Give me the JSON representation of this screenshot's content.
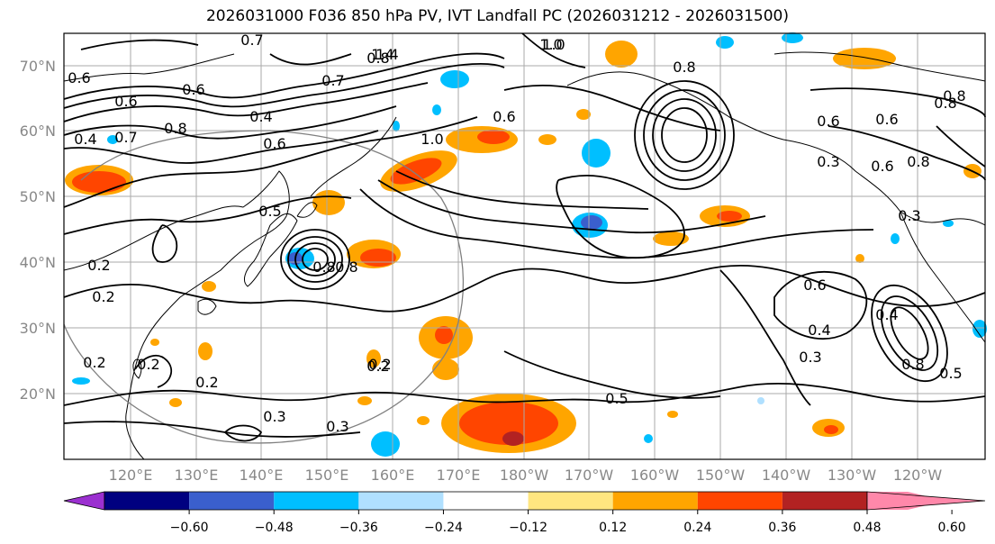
{
  "title": "2026031000 F036 850 hPa PV, IVT Landfall PC (2026031212 - 2026031500)",
  "lat_labels": [
    "70°N",
    "60°N",
    "50°N",
    "40°N",
    "30°N",
    "20°N"
  ],
  "lon_labels": [
    "120°E",
    "130°E",
    "140°E",
    "150°E",
    "160°E",
    "170°E",
    "180°W",
    "170°W",
    "160°W",
    "150°W",
    "140°W",
    "130°W",
    "120°W"
  ],
  "colorbar": {
    "ticks": [
      "−0.60",
      "−0.48",
      "−0.36",
      "−0.24",
      "−0.12",
      "0.12",
      "0.24",
      "0.36",
      "0.48",
      "0.60"
    ],
    "colors": [
      "#9b30d0",
      "#000080",
      "#3a5fcd",
      "#00bfff",
      "#b0e0ff",
      "#ffffff",
      "#ffe680",
      "#ffa500",
      "#ff4500",
      "#b22222",
      "#ff88aa"
    ]
  },
  "contour_labels": [
    "0.6",
    "0.7",
    "0.8",
    "1.0",
    "1.4",
    "0.4",
    "0.6",
    "0.8",
    "1.0",
    "0.6",
    "0.7",
    "0.6",
    "0.8",
    "0.4",
    "0.7",
    "0.6",
    "0.6",
    "0.8",
    "0.6",
    "0.8",
    "0.5",
    "0.2",
    "0.2",
    "0.2",
    "0.2",
    "0.2",
    "0.3",
    "0.3",
    "0.8",
    "0.8",
    "0.2",
    "0.5",
    "0.6",
    "0.4",
    "0.3",
    "0.4",
    "0.8",
    "0.5",
    "0.6",
    "1.0",
    "1.4",
    "0.8",
    "0.3",
    "0.3",
    "0.2"
  ],
  "colors": {
    "contour": "#000000",
    "grid": "#aaaaaa",
    "circle": "#808080"
  }
}
